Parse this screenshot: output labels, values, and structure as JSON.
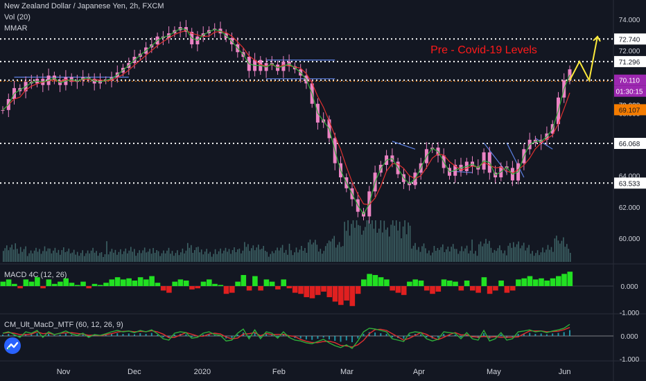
{
  "header": {
    "title": "New Zealand Dollar / Japanese Yen, 2h, FXCM",
    "vol_label": "Vol (20)",
    "ma_label": "MMAR"
  },
  "annotation": {
    "text": "Pre - Covid-19 Levels",
    "color": "#ff1a1a"
  },
  "panes": {
    "macd_label": "MACD 4C (12, 26)",
    "cm_label": "CM_Ult_MacD_MTF (60, 12, 26, 9)"
  },
  "colors": {
    "background": "#131722",
    "up_candle": "#ec83c4",
    "down_candle": "#ec83c4",
    "ma_fast": "#2fae3a",
    "ma_slow": "#e03030",
    "volume": "#4c7c7c",
    "macd_pos": "#22e022",
    "macd_neg": "#e02020",
    "projection": "#ffeb3b",
    "trendline": "#5b7fe0"
  },
  "chart_data": [
    {
      "type": "line",
      "title": "New Zealand Dollar / Japanese Yen, 2h, FXCM",
      "x_tick_labels": [
        "Nov",
        "Dec",
        "2020",
        "Feb",
        "Mar",
        "Apr",
        "May",
        "Jun"
      ],
      "y_axis": {
        "ticks": [
          74.0,
          72.0,
          62.0,
          60.0
        ],
        "partially_visible_ticks": [
          68.0,
          64.0
        ],
        "ylim": [
          58.5,
          74.7
        ]
      },
      "series": [
        {
          "values": [
            68.2,
            68.9,
            69.6,
            69.4,
            70.0,
            69.9,
            70.2,
            69.8,
            70.4,
            70.1,
            69.8,
            70.3,
            70.0,
            70.1,
            70.3,
            70.2,
            69.9,
            70.1,
            70.1,
            70.3,
            70.6,
            70.9,
            71.2,
            71.6,
            71.8,
            72.2,
            72.4,
            72.9,
            72.8,
            73.1,
            73.3,
            73.5,
            73.2,
            72.4,
            72.9,
            73.1,
            73.3,
            73.4,
            73.1,
            72.8,
            72.4,
            71.9,
            71.6,
            70.7,
            71.4,
            70.7,
            71.2,
            71.1,
            70.7,
            71.3,
            71.0,
            70.8,
            70.4,
            69.9,
            68.6,
            67.4,
            67.6,
            66.4,
            64.8,
            63.9,
            63.2,
            62.5,
            61.7,
            61.4,
            63.0,
            64.2,
            64.7,
            65.3,
            64.9,
            64.1,
            63.6,
            63.4,
            64.2,
            64.8,
            65.7,
            65.8,
            65.3,
            64.5,
            64.0,
            64.7,
            64.3,
            64.9,
            64.6,
            64.4,
            65.5,
            64.2,
            63.9,
            64.6,
            64.5,
            63.7,
            64.8,
            65.7,
            66.3,
            66.1,
            66.3,
            66.7,
            67.3,
            69.0,
            70.1,
            70.8
          ]
        }
      ],
      "horizontal_levels": [
        72.74,
        71.296,
        70.11,
        66.068,
        63.533
      ],
      "current_price": {
        "value": 70.038,
        "label": "70.038"
      },
      "price_labels": [
        {
          "text": "72.740",
          "kind": "level"
        },
        {
          "text": "71.296",
          "kind": "level"
        },
        {
          "text": "70.110",
          "kind": "highlight"
        },
        {
          "text": "01:30:15",
          "kind": "countdown"
        },
        {
          "text": "70.038",
          "kind": "plain"
        },
        {
          "text": "69.107",
          "kind": "orange"
        },
        {
          "text": "66.068",
          "kind": "level"
        },
        {
          "text": "63.533",
          "kind": "level"
        }
      ]
    },
    {
      "type": "bar",
      "title": "MACD 4C (12, 26)",
      "y_tick_labels": [
        "0.000",
        "-1.000"
      ],
      "values": [
        0.2,
        0.3,
        0.1,
        -0.1,
        0.3,
        0.2,
        0.4,
        -0.1,
        0.3,
        0.1,
        0.2,
        0.35,
        0.15,
        0.05,
        0.2,
        -0.1,
        0.1,
        0.05,
        0.15,
        0.3,
        0.4,
        0.3,
        0.35,
        0.25,
        0.4,
        0.3,
        0.45,
        0.15,
        -0.2,
        -0.3,
        0.2,
        0.3,
        0.25,
        -0.15,
        -0.1,
        0.2,
        0.3,
        0.1,
        0.05,
        -0.35,
        -0.3,
        0.2,
        0.5,
        -0.2,
        0.45,
        -0.2,
        0.3,
        0.2,
        -0.15,
        0.3,
        -0.1,
        -0.3,
        -0.35,
        -0.5,
        -0.55,
        -0.4,
        -0.25,
        -0.5,
        -0.7,
        -0.85,
        -0.65,
        -0.9,
        -0.35,
        0.3,
        0.55,
        0.5,
        0.4,
        0.3,
        -0.2,
        -0.3,
        -0.4,
        0.2,
        0.3,
        0.25,
        -0.2,
        -0.35,
        -0.25,
        0.3,
        0.25,
        0.2,
        -0.2,
        0.25,
        -0.2,
        -0.3,
        0.4,
        -0.35,
        -0.2,
        0.25,
        -0.3,
        -0.2,
        0.3,
        0.35,
        0.45,
        0.3,
        0.35,
        0.25,
        0.35,
        0.45,
        0.55,
        0.65
      ]
    },
    {
      "type": "line",
      "title": "CM_Ult_MacD_MTF (60, 12, 26, 9)",
      "y_tick_labels": [
        "0.000",
        "-1.000"
      ],
      "series": [
        {
          "values": [
            0.1,
            0.15,
            0.05,
            -0.05,
            0.15,
            0.1,
            0.2,
            -0.05,
            0.15,
            0.05,
            0.1,
            0.18,
            0.08,
            0.02,
            0.1,
            -0.05,
            0.05,
            0.02,
            0.08,
            0.15,
            0.2,
            0.15,
            0.18,
            0.12,
            0.2,
            0.15,
            0.22,
            0.08,
            -0.1,
            -0.15,
            0.1,
            0.15,
            0.12,
            -0.08,
            -0.05,
            0.1,
            0.15,
            0.05,
            0.02,
            -0.18,
            -0.15,
            0.1,
            0.25,
            -0.1,
            0.22,
            -0.1,
            0.15,
            0.1,
            -0.08,
            0.15,
            -0.05,
            -0.15,
            -0.18,
            -0.25,
            -0.28,
            -0.2,
            -0.12,
            -0.25,
            -0.35,
            -0.42,
            -0.32,
            -0.45,
            -0.18,
            0.15,
            0.28,
            0.25,
            0.2,
            0.15,
            -0.1,
            -0.15,
            -0.2,
            0.1,
            0.15,
            0.12,
            -0.1,
            -0.18,
            -0.12,
            0.15,
            0.12,
            0.1,
            -0.1,
            0.12,
            -0.1,
            -0.15,
            0.2,
            -0.18,
            -0.1,
            0.12,
            -0.15,
            -0.1,
            0.15,
            0.18,
            0.22,
            0.15,
            0.18,
            0.12,
            0.18,
            0.22,
            0.28,
            0.42
          ]
        }
      ]
    }
  ]
}
